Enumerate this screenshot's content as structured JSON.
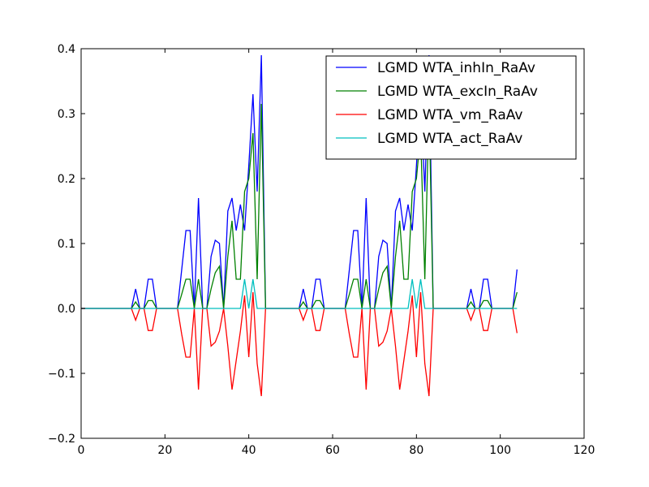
{
  "chart_data": {
    "type": "line",
    "title": "",
    "xlabel": "",
    "ylabel": "",
    "xlim": [
      0,
      120
    ],
    "ylim": [
      -0.2,
      0.4
    ],
    "xticks": [
      0,
      20,
      40,
      60,
      80,
      100,
      120
    ],
    "yticks": [
      -0.2,
      -0.1,
      0.0,
      0.1,
      0.2,
      0.3,
      0.4
    ],
    "xtick_labels": [
      "0",
      "20",
      "40",
      "60",
      "80",
      "100",
      "120"
    ],
    "ytick_labels": [
      "−0.2",
      "−0.1",
      "0.0",
      "0.1",
      "0.2",
      "0.3",
      "0.4"
    ],
    "grid": false,
    "legend_position": "top-right",
    "series": [
      {
        "name": "LGMD WTA_inhIn_RaAv",
        "color": "#0000ff",
        "x": [
          0,
          12,
          13,
          14,
          15,
          16,
          17,
          18,
          23,
          24,
          25,
          26,
          27,
          28,
          29,
          30,
          31,
          32,
          33,
          34,
          35,
          36,
          37,
          38,
          39,
          40,
          41,
          42,
          43,
          44,
          45,
          52,
          53,
          54,
          55,
          56,
          57,
          58,
          63,
          64,
          65,
          66,
          67,
          68,
          69,
          70,
          71,
          72,
          73,
          74,
          75,
          76,
          77,
          78,
          79,
          80,
          81,
          82,
          83,
          84,
          85,
          92,
          93,
          94,
          95,
          96,
          97,
          98,
          103,
          104
        ],
        "y": [
          0,
          0,
          0.03,
          0,
          0,
          0.045,
          0.045,
          0,
          0,
          0.06,
          0.12,
          0.12,
          0,
          0.17,
          0,
          0,
          0.08,
          0.105,
          0.1,
          0,
          0.15,
          0.17,
          0.12,
          0.16,
          0.12,
          0.22,
          0.33,
          0.18,
          0.39,
          0,
          0,
          0,
          0.03,
          0,
          0,
          0.045,
          0.045,
          0,
          0,
          0.06,
          0.12,
          0.12,
          0,
          0.17,
          0,
          0,
          0.08,
          0.105,
          0.1,
          0,
          0.15,
          0.17,
          0.12,
          0.16,
          0.12,
          0.22,
          0.33,
          0.18,
          0.39,
          0,
          0,
          0,
          0.03,
          0,
          0,
          0.045,
          0.045,
          0,
          0,
          0.06
        ]
      },
      {
        "name": "LGMD WTA_excIn_RaAv",
        "color": "#008000",
        "x": [
          0,
          12,
          13,
          14,
          15,
          16,
          17,
          18,
          23,
          24,
          25,
          26,
          27,
          28,
          29,
          30,
          31,
          32,
          33,
          34,
          35,
          36,
          37,
          38,
          39,
          40,
          41,
          42,
          43,
          44,
          45,
          52,
          53,
          54,
          55,
          56,
          57,
          58,
          63,
          64,
          65,
          66,
          67,
          68,
          69,
          70,
          71,
          72,
          73,
          74,
          75,
          76,
          77,
          78,
          79,
          80,
          81,
          82,
          83,
          84,
          85,
          92,
          93,
          94,
          95,
          96,
          97,
          98,
          103,
          104
        ],
        "y": [
          0,
          0,
          0.01,
          0,
          0,
          0.012,
          0.012,
          0,
          0,
          0.022,
          0.045,
          0.045,
          0,
          0.045,
          0,
          0,
          0.03,
          0.055,
          0.065,
          0,
          0.08,
          0.135,
          0.045,
          0.045,
          0.18,
          0.2,
          0.27,
          0.045,
          0.315,
          0,
          0,
          0,
          0.01,
          0,
          0,
          0.012,
          0.012,
          0,
          0,
          0.022,
          0.045,
          0.045,
          0,
          0.045,
          0,
          0,
          0.03,
          0.055,
          0.065,
          0,
          0.08,
          0.135,
          0.045,
          0.045,
          0.18,
          0.2,
          0.27,
          0.045,
          0.315,
          0,
          0,
          0,
          0.01,
          0,
          0,
          0.012,
          0.012,
          0,
          0,
          0.025
        ]
      },
      {
        "name": "LGMD WTA_vm_RaAv",
        "color": "#ff0000",
        "x": [
          0,
          12,
          13,
          14,
          15,
          16,
          17,
          18,
          23,
          24,
          25,
          26,
          27,
          28,
          29,
          30,
          31,
          32,
          33,
          34,
          35,
          36,
          37,
          38,
          39,
          40,
          41,
          42,
          43,
          44,
          45,
          52,
          53,
          54,
          55,
          56,
          57,
          58,
          63,
          64,
          65,
          66,
          67,
          68,
          69,
          70,
          71,
          72,
          73,
          74,
          75,
          76,
          77,
          78,
          79,
          80,
          81,
          82,
          83,
          84,
          85,
          92,
          93,
          94,
          95,
          96,
          97,
          98,
          103,
          104
        ],
        "y": [
          0,
          0,
          -0.018,
          0,
          0,
          -0.034,
          -0.034,
          0,
          0,
          -0.04,
          -0.075,
          -0.075,
          0,
          -0.125,
          0,
          0,
          -0.058,
          -0.052,
          -0.035,
          0,
          -0.058,
          -0.125,
          -0.08,
          -0.035,
          0.02,
          -0.075,
          0.025,
          -0.085,
          -0.135,
          0,
          0,
          0,
          -0.018,
          0,
          0,
          -0.034,
          -0.034,
          0,
          0,
          -0.04,
          -0.075,
          -0.075,
          0,
          -0.125,
          0,
          0,
          -0.058,
          -0.052,
          -0.035,
          0,
          -0.058,
          -0.125,
          -0.08,
          -0.035,
          0.02,
          -0.075,
          0.025,
          -0.085,
          -0.135,
          0,
          0,
          0,
          -0.018,
          0,
          0,
          -0.034,
          -0.034,
          0,
          0,
          -0.038
        ]
      },
      {
        "name": "LGMD WTA_act_RaAv",
        "color": "#00bfbf",
        "x": [
          0,
          35,
          36,
          37,
          38,
          39,
          40,
          41,
          42,
          43,
          44,
          45,
          75,
          76,
          77,
          78,
          79,
          80,
          81,
          82,
          83,
          84,
          85,
          104
        ],
        "y": [
          0,
          0,
          0,
          0,
          0,
          0.045,
          0,
          0.045,
          0,
          0,
          0,
          0,
          0,
          0,
          0,
          0,
          0.045,
          0,
          0.045,
          0,
          0,
          0,
          0,
          0
        ]
      }
    ]
  }
}
